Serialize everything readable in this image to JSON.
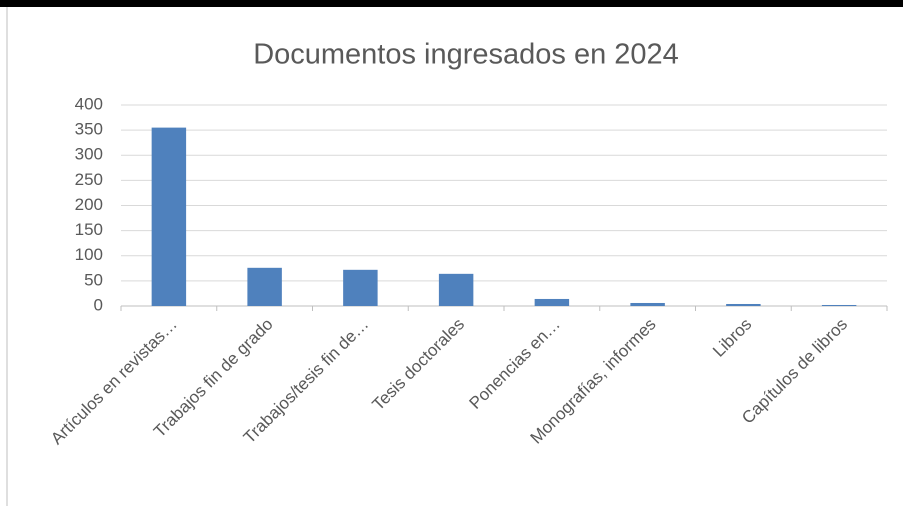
{
  "chart_data": {
    "type": "bar",
    "title": "Documentos ingresados en 2024",
    "categories": [
      "Artículos en revistas…",
      "Trabajos fin de grado",
      "Trabajos/tesis fin de…",
      "Tesis doctorales",
      "Ponencias en…",
      "Monografías, informes",
      "Libros",
      "Capítulos de libros"
    ],
    "values": [
      355,
      76,
      72,
      64,
      14,
      6,
      4,
      2
    ],
    "color": "#4f81bd",
    "ylim": [
      0,
      400
    ],
    "yticks": [
      0,
      50,
      100,
      150,
      200,
      250,
      300,
      350,
      400
    ],
    "grid": true
  }
}
